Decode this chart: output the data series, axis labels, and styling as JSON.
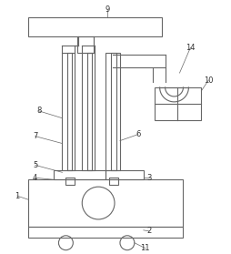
{
  "fig_width": 2.54,
  "fig_height": 2.79,
  "dpi": 100,
  "line_color": "#666666",
  "bg_color": "#ffffff",
  "label_fs": 6.0,
  "label_color": "#333333"
}
